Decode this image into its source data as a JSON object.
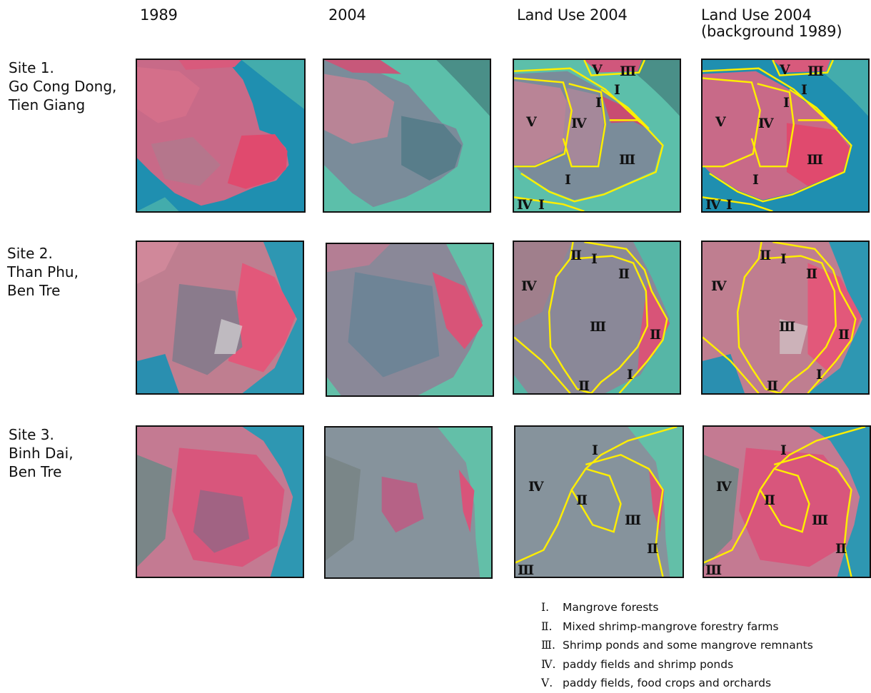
{
  "columns": [
    {
      "title": "1989"
    },
    {
      "title": "2004"
    },
    {
      "title": "Land Use 2004"
    },
    {
      "title": "Land Use 2004",
      "subtitle": "(background 1989)"
    }
  ],
  "sites": [
    {
      "lines": [
        "Site 1.",
        "Go Cong Dong,",
        "Tien Giang"
      ],
      "labels": [
        "Ⅴ",
        "Ⅲ",
        "Ⅰ",
        "Ⅰ",
        "Ⅴ",
        "Ⅳ",
        "Ⅲ",
        "Ⅰ",
        "Ⅳ",
        "Ⅰ"
      ]
    },
    {
      "lines": [
        "Site 2.",
        "Than Phu,",
        "Ben Tre"
      ],
      "labels": [
        "Ⅱ",
        "Ⅰ",
        "Ⅱ",
        "Ⅳ",
        "Ⅲ",
        "Ⅱ",
        "Ⅰ",
        "Ⅱ"
      ]
    },
    {
      "lines": [
        "Site 3.",
        "Binh Dai,",
        "Ben Tre"
      ],
      "labels": [
        "Ⅰ",
        "Ⅳ",
        "Ⅱ",
        "Ⅲ",
        "Ⅱ",
        "Ⅲ"
      ]
    }
  ],
  "legend": [
    {
      "numeral": "Ⅰ.",
      "text": "Mangrove forests"
    },
    {
      "numeral": "Ⅱ.",
      "text": "Mixed shrimp-mangrove forestry farms"
    },
    {
      "numeral": "Ⅲ.",
      "text": "Shrimp ponds and some mangrove remnants"
    },
    {
      "numeral": "Ⅳ.",
      "text": "paddy fields and shrimp ponds"
    },
    {
      "numeral": "Ⅴ.",
      "text": "paddy fields, food crops and orchards"
    }
  ],
  "colors": {
    "water_deep": "#1f8fb0",
    "water_turbid": "#5cbfaa",
    "vegetation_red": "#e04a6e",
    "land_mixed": "#a07f8c",
    "ponds": "#587d8a",
    "boundary_yellow": "#ffee00",
    "frame": "#101010"
  }
}
